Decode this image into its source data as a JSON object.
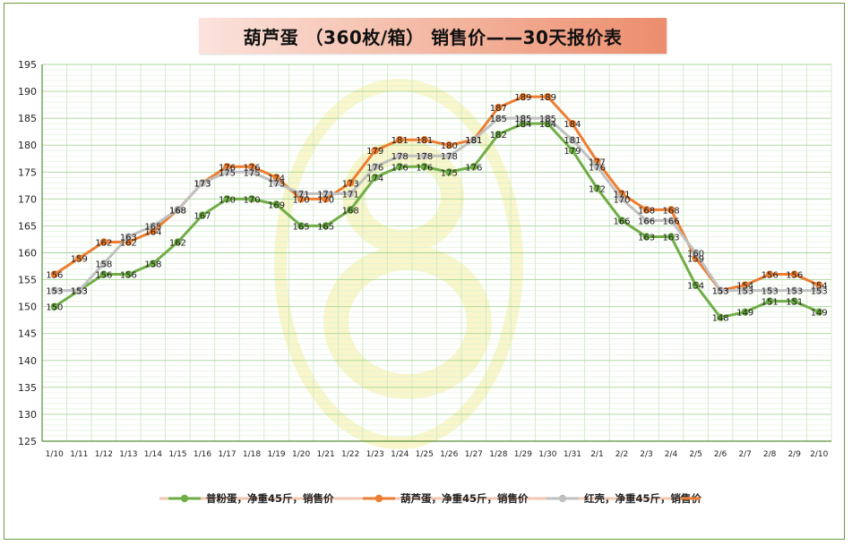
{
  "chart_data": {
    "type": "line",
    "title": "葫芦蛋 （360枚/箱） 销售价——30天报价表",
    "xlabel": "",
    "ylabel": "",
    "ylim": [
      125,
      195
    ],
    "yticks": [
      125,
      130,
      135,
      140,
      145,
      150,
      155,
      160,
      165,
      170,
      175,
      180,
      185,
      190,
      195
    ],
    "grid": true,
    "legend_position": "bottom",
    "categories": [
      "1/10",
      "1/11",
      "1/12",
      "1/13",
      "1/14",
      "1/15",
      "1/16",
      "1/17",
      "1/18",
      "1/19",
      "1/20",
      "1/21",
      "1/22",
      "1/23",
      "1/24",
      "1/25",
      "1/26",
      "1/27",
      "1/28",
      "1/29",
      "1/30",
      "1/31",
      "2/1",
      "2/2",
      "2/3",
      "2/4",
      "2/5",
      "2/6",
      "2/7",
      "2/8",
      "2/9",
      "2/10"
    ],
    "series": [
      {
        "name": "普粉蛋，净重45斤，销售价",
        "color": "#70ad47",
        "values": [
          150,
          153,
          156,
          156,
          158,
          162,
          167,
          170,
          170,
          169,
          165,
          165,
          168,
          174,
          176,
          176,
          175,
          176,
          182,
          184,
          184,
          179,
          172,
          166,
          163,
          163,
          154,
          148,
          149,
          151,
          151,
          149
        ]
      },
      {
        "name": "葫芦蛋，净重45斤，销售价",
        "color": "#ed7d31",
        "values": [
          156,
          159,
          162,
          162,
          164,
          168,
          173,
          176,
          176,
          174,
          170,
          170,
          173,
          179,
          181,
          181,
          180,
          181,
          187,
          189,
          189,
          184,
          177,
          171,
          168,
          168,
          159,
          153,
          154,
          156,
          156,
          154
        ]
      },
      {
        "name": "红壳，净重45斤，销售价",
        "color": "#c0c0c0",
        "values": [
          153,
          153,
          158,
          163,
          165,
          168,
          173,
          175,
          175,
          173,
          171,
          171,
          171,
          176,
          178,
          178,
          178,
          181,
          185,
          185,
          185,
          181,
          176,
          170,
          166,
          166,
          160,
          153,
          153,
          153,
          153,
          153
        ]
      }
    ]
  }
}
